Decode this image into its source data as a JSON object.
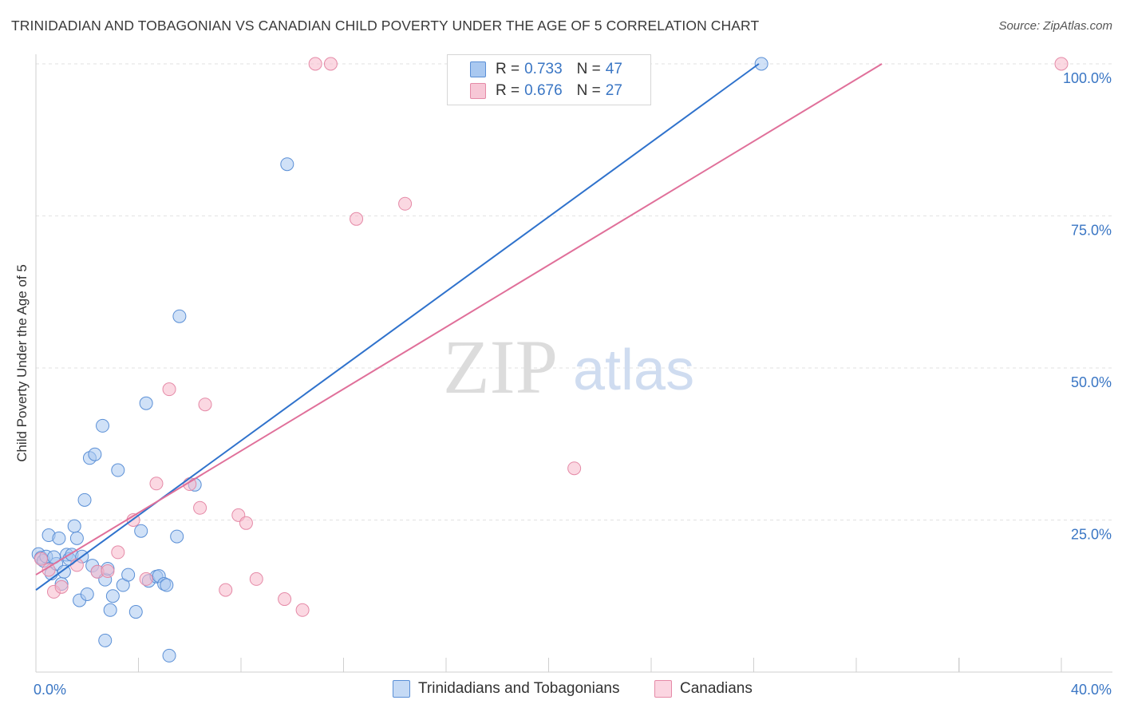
{
  "title": "TRINIDADIAN AND TOBAGONIAN VS CANADIAN CHILD POVERTY UNDER THE AGE OF 5 CORRELATION CHART",
  "source": "Source: ZipAtlas.com",
  "watermark": {
    "zip": "ZIP",
    "atlas": "atlas"
  },
  "legend": {
    "rows": [
      {
        "r_label": "R = ",
        "r_value": "0.733",
        "n_label": "N = ",
        "n_value": "47"
      },
      {
        "r_label": "R = ",
        "r_value": "0.676",
        "n_label": "N = ",
        "n_value": "27"
      }
    ]
  },
  "bottom_legend": [
    "Trinidadians and Tobagonians",
    "Canadians"
  ],
  "colors": {
    "blue_fill": "#a9c8f0",
    "blue_edge": "#5a8fd6",
    "blue_line": "#2f72cc",
    "pink_fill": "#f7b8cb",
    "pink_edge": "#e58aa7",
    "pink_line": "#e0709a",
    "axis_text": "#3a76c4",
    "grid": "#e2e2e2"
  },
  "chart_data": {
    "type": "scatter",
    "title": "TRINIDADIAN AND TOBAGONIAN VS CANADIAN CHILD POVERTY UNDER THE AGE OF 5 CORRELATION CHART",
    "xlabel": "",
    "ylabel": "Child Poverty Under the Age of 5",
    "xlim": [
      0,
      40
    ],
    "ylim": [
      0,
      100
    ],
    "x_tick_labels": [
      "0.0%",
      "40.0%"
    ],
    "y_ticks": [
      25,
      50,
      75,
      100
    ],
    "y_tick_labels": [
      "25.0%",
      "50.0%",
      "75.0%",
      "100.0%"
    ],
    "grid": true,
    "legend_position": "top-center",
    "series": [
      {
        "name": "Trinidadians and Tobagonians",
        "R": 0.733,
        "N": 47,
        "trend": {
          "x": [
            0,
            28.2
          ],
          "y": [
            13.5,
            100
          ]
        },
        "points": [
          [
            0.1,
            19.4
          ],
          [
            0.2,
            18.8
          ],
          [
            0.3,
            18.3
          ],
          [
            0.4,
            19.0
          ],
          [
            0.5,
            22.5
          ],
          [
            0.6,
            16.2
          ],
          [
            0.8,
            17.8
          ],
          [
            0.9,
            22.0
          ],
          [
            1.0,
            14.5
          ],
          [
            1.1,
            16.5
          ],
          [
            1.2,
            19.3
          ],
          [
            1.3,
            18.6
          ],
          [
            1.4,
            19.3
          ],
          [
            1.5,
            24.0
          ],
          [
            1.6,
            22.0
          ],
          [
            1.7,
            11.8
          ],
          [
            1.8,
            19.0
          ],
          [
            1.9,
            28.3
          ],
          [
            2.0,
            12.8
          ],
          [
            2.1,
            35.2
          ],
          [
            2.2,
            17.5
          ],
          [
            2.3,
            35.8
          ],
          [
            2.4,
            16.5
          ],
          [
            2.6,
            40.5
          ],
          [
            2.7,
            15.2
          ],
          [
            2.8,
            17.0
          ],
          [
            2.7,
            5.2
          ],
          [
            2.9,
            10.2
          ],
          [
            3.2,
            33.2
          ],
          [
            3.4,
            14.3
          ],
          [
            3.6,
            16.0
          ],
          [
            3.9,
            9.9
          ],
          [
            4.1,
            23.2
          ],
          [
            4.3,
            44.2
          ],
          [
            4.4,
            15.0
          ],
          [
            4.7,
            15.7
          ],
          [
            4.8,
            15.8
          ],
          [
            5.0,
            14.5
          ],
          [
            5.1,
            14.3
          ],
          [
            5.2,
            2.7
          ],
          [
            5.5,
            22.3
          ],
          [
            5.6,
            58.5
          ],
          [
            6.2,
            30.8
          ],
          [
            9.8,
            83.5
          ],
          [
            28.3,
            100.0
          ],
          [
            0.7,
            18.9
          ],
          [
            3.0,
            12.5
          ]
        ]
      },
      {
        "name": "Canadians",
        "R": 0.676,
        "N": 27,
        "trend": {
          "x": [
            0,
            33
          ],
          "y": [
            16,
            100
          ]
        },
        "points": [
          [
            0.2,
            18.6
          ],
          [
            0.5,
            16.8
          ],
          [
            0.7,
            13.2
          ],
          [
            1.0,
            14.0
          ],
          [
            1.6,
            17.6
          ],
          [
            2.4,
            16.5
          ],
          [
            2.8,
            16.6
          ],
          [
            3.2,
            19.7
          ],
          [
            3.8,
            25.0
          ],
          [
            4.3,
            15.3
          ],
          [
            4.7,
            31.0
          ],
          [
            5.2,
            46.5
          ],
          [
            6.0,
            30.9
          ],
          [
            6.4,
            27.0
          ],
          [
            6.6,
            44.0
          ],
          [
            7.4,
            13.5
          ],
          [
            7.9,
            25.8
          ],
          [
            8.2,
            24.5
          ],
          [
            8.6,
            15.3
          ],
          [
            9.7,
            12.0
          ],
          [
            10.4,
            10.2
          ],
          [
            10.9,
            100.0
          ],
          [
            11.5,
            100.0
          ],
          [
            12.5,
            74.5
          ],
          [
            14.4,
            77.0
          ],
          [
            21.0,
            33.5
          ],
          [
            40.0,
            100.0
          ]
        ]
      }
    ]
  }
}
